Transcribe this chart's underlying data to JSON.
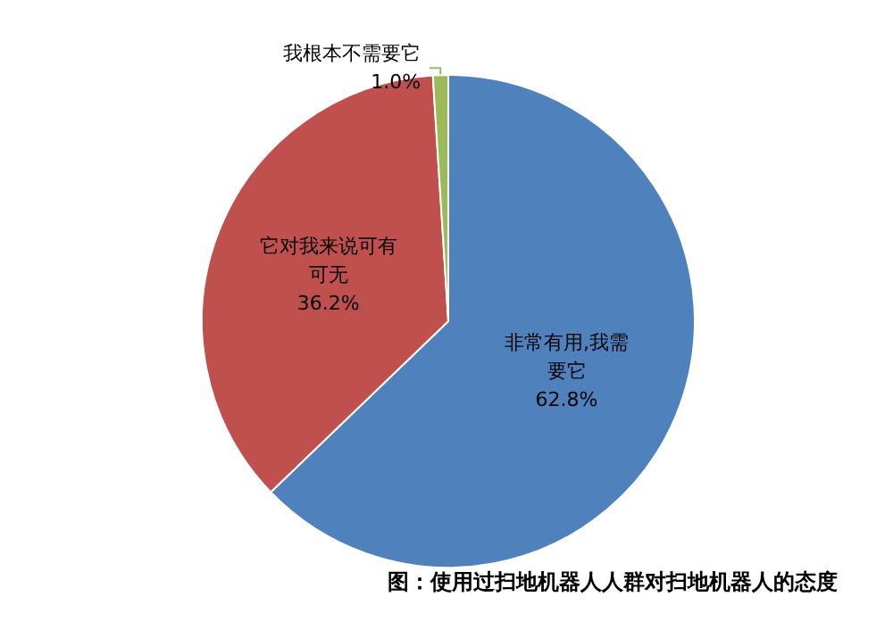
{
  "chart_data": {
    "type": "pie",
    "title": "图：使用过扫地机器人人群对扫地机器人的态度",
    "categories": [
      "非常有用,我需要它",
      "它对我来说可有可无",
      "我根本不需要它"
    ],
    "values": [
      62.8,
      36.2,
      1.0
    ],
    "value_labels": [
      "62.8%",
      "36.2%",
      "1.0%"
    ],
    "colors": [
      "#4f81bd",
      "#c0504d",
      "#9bbb59"
    ],
    "legend": false
  }
}
